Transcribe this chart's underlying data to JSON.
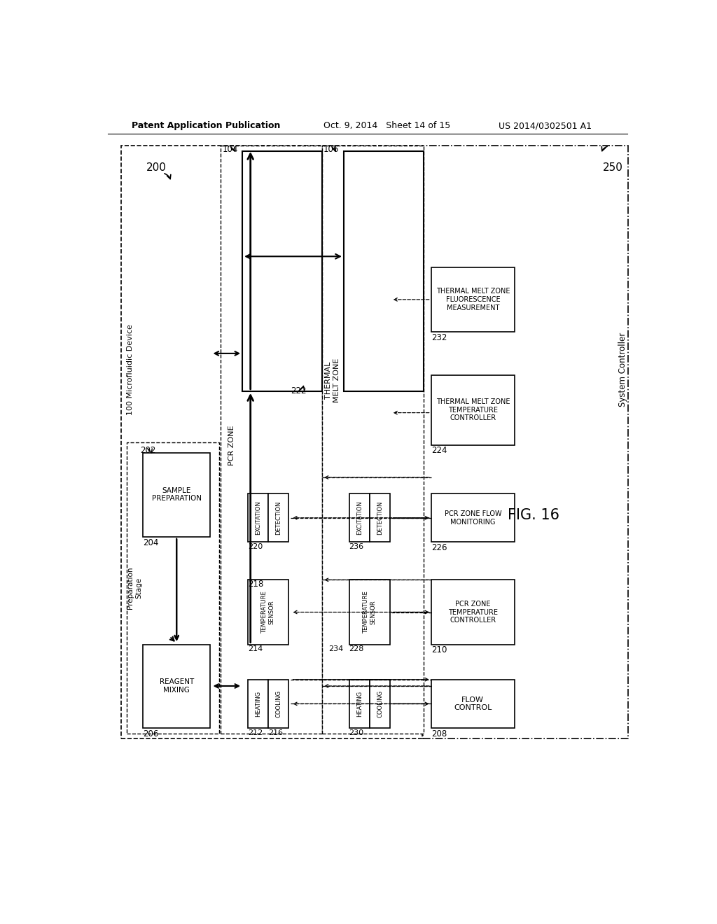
{
  "header_left": "Patent Application Publication",
  "header_mid": "Oct. 9, 2014   Sheet 14 of 15",
  "header_right": "US 2014/0302501 A1",
  "fig_label": "FIG. 16",
  "bg_color": "#ffffff"
}
